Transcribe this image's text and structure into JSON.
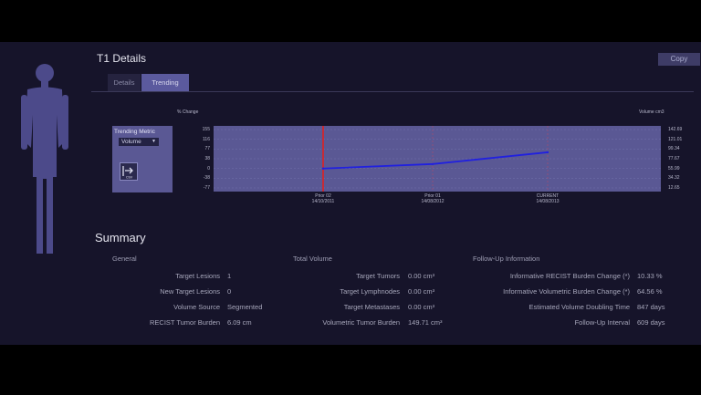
{
  "header": {
    "title": "T1 Details",
    "copy_label": "Copy"
  },
  "tabs": [
    {
      "label": "Details",
      "active": false
    },
    {
      "label": "Trending",
      "active": true
    }
  ],
  "trending": {
    "metric_label": "Trending Metric",
    "metric_value": "Volume",
    "csv_icon": "csv-export-icon"
  },
  "chart_data": {
    "type": "line",
    "left_axis_label": "% Change",
    "right_axis_label": "Volume cm3",
    "left_ticks": [
      "155",
      "116",
      "77",
      "38",
      "0",
      "-38",
      "-77"
    ],
    "right_ticks": [
      "142.69",
      "121.01",
      "99.34",
      "77.67",
      "55.99",
      "34.32",
      "12.65"
    ],
    "x_ticks": [
      {
        "label": "Prior 02",
        "date": "14/10/2011"
      },
      {
        "label": "Prior 01",
        "date": "14/08/2012"
      },
      {
        "label": "CURRENT",
        "date": "14/08/2013"
      }
    ],
    "series": [
      {
        "values": [
          0,
          18,
          64.56
        ]
      }
    ],
    "ylim": [
      -77,
      155
    ],
    "baseline_color": "#e02020",
    "line_color": "#2020e0",
    "plot_color": "#5a5894"
  },
  "summary": {
    "title": "Summary",
    "general": {
      "heading": "General",
      "rows": [
        {
          "label": "Target Lesions",
          "value": "1"
        },
        {
          "label": "New Target Lesions",
          "value": "0"
        },
        {
          "label": "Volume Source",
          "value": "Segmented"
        },
        {
          "label": "RECIST Tumor Burden",
          "value": "6.09 cm"
        }
      ]
    },
    "volume": {
      "heading": "Total Volume",
      "rows": [
        {
          "label": "Target Tumors",
          "value": "0.00 cm³"
        },
        {
          "label": "Target Lymphnodes",
          "value": "0.00 cm³"
        },
        {
          "label": "Target Metastases",
          "value": "0.00 cm³"
        },
        {
          "label": "Volumetric Tumor Burden",
          "value": "149.71 cm³"
        }
      ]
    },
    "followup": {
      "heading": "Follow-Up Information",
      "rows": [
        {
          "label": "Informative RECIST Burden Change (*)",
          "value": "10.33 %"
        },
        {
          "label": "Informative Volumetric Burden Change (*)",
          "value": "64.56 %"
        },
        {
          "label": "Estimated Volume Doubling Time",
          "value": "847 days"
        },
        {
          "label": "Follow-Up Interval",
          "value": "609 days"
        }
      ]
    }
  }
}
